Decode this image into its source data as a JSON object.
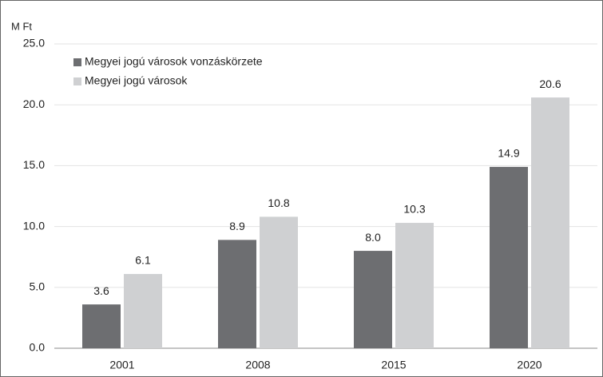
{
  "chart_data": {
    "type": "bar",
    "y_label": "M Ft",
    "categories": [
      "2001",
      "2008",
      "2015",
      "2020"
    ],
    "series": [
      {
        "name": "Megyei jogú városok vonzáskörzete",
        "color": "#6d6e71",
        "values": [
          3.6,
          8.9,
          8.0,
          14.9
        ],
        "value_labels": [
          "3.6",
          "8.9",
          "8.0",
          "14.9"
        ]
      },
      {
        "name": "Megyei jogú városok",
        "color": "#cfd0d2",
        "values": [
          6.1,
          10.8,
          10.3,
          20.6
        ],
        "value_labels": [
          "6.1",
          "10.8",
          "10.3",
          "20.6"
        ]
      }
    ],
    "ylim": [
      0,
      25
    ],
    "yticks": [
      {
        "value": 0,
        "label": "0.0"
      },
      {
        "value": 5,
        "label": "5.0"
      },
      {
        "value": 10,
        "label": "10.0"
      },
      {
        "value": 15,
        "label": "15.0"
      },
      {
        "value": 20,
        "label": "20.0"
      },
      {
        "value": 25,
        "label": "25.0"
      }
    ],
    "grid": true,
    "legend": "upper left"
  }
}
